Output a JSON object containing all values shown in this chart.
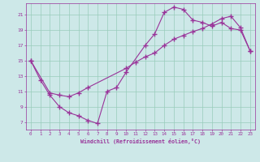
{
  "xlabel": "Windchill (Refroidissement éolien,°C)",
  "bg_color": "#cde8e8",
  "line_color": "#993399",
  "marker": "+",
  "xlim": [
    -0.5,
    23.5
  ],
  "ylim": [
    6,
    22.5
  ],
  "xticks": [
    0,
    1,
    2,
    3,
    4,
    5,
    6,
    7,
    8,
    9,
    10,
    11,
    12,
    13,
    14,
    15,
    16,
    17,
    18,
    19,
    20,
    21,
    22,
    23
  ],
  "yticks": [
    7,
    9,
    11,
    13,
    15,
    17,
    19,
    21
  ],
  "grid_color": "#99ccbb",
  "curve1_x": [
    0,
    1,
    2,
    3,
    4,
    5,
    6,
    7,
    8,
    9,
    10,
    12,
    13,
    14,
    15,
    16,
    17,
    18,
    19,
    20,
    21,
    22,
    23
  ],
  "curve1_y": [
    15,
    12.5,
    10.5,
    9.0,
    8.2,
    7.8,
    7.2,
    6.8,
    11.0,
    11.5,
    13.5,
    17.0,
    18.5,
    21.3,
    22.0,
    21.7,
    20.3,
    20.0,
    19.5,
    20.0,
    19.2,
    19.0,
    16.3
  ],
  "curve2_x": [
    0,
    2,
    3,
    4,
    5,
    6,
    10,
    11,
    12,
    13,
    14,
    15,
    16,
    17,
    18,
    19,
    20,
    21,
    22,
    23
  ],
  "curve2_y": [
    15,
    10.8,
    10.5,
    10.3,
    10.8,
    11.5,
    14.0,
    14.8,
    15.5,
    16.0,
    17.0,
    17.8,
    18.3,
    18.8,
    19.2,
    19.8,
    20.5,
    20.8,
    19.3,
    16.3
  ]
}
